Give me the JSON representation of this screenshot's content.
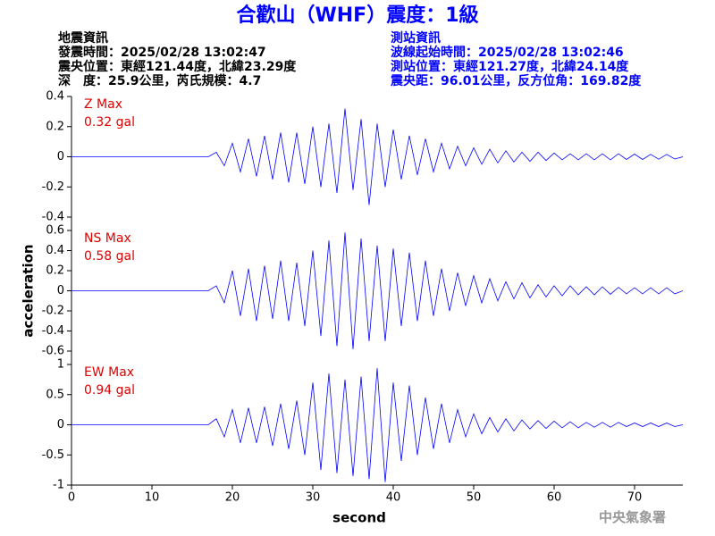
{
  "header": {
    "title": "合歡山（WHF）震度：1級",
    "left": [
      "地震資訊",
      "發震時間：2025/02/28 13:02:47",
      "震央位置：東經121.44度，北緯23.29度",
      "深　度：25.9公里，芮氏規模：4.7"
    ],
    "right": [
      "測站資訊",
      "波線起始時間：2025/02/28 13:02:46",
      "測站位置：東經121.27度，北緯24.14度",
      "震央距：96.01公里，反方位角：169.82度"
    ],
    "footer": "中央氣象署"
  },
  "chart_data": [
    {
      "type": "line",
      "annotations": [
        "Z Max",
        "0.32 gal"
      ],
      "color": "#0000ff",
      "xlim": [
        0,
        76
      ],
      "ylim": [
        -0.4,
        0.4
      ],
      "yticks": [
        0.4,
        0.2,
        0,
        -0.2,
        -0.4
      ],
      "x": [
        0,
        17,
        18,
        19,
        20,
        21,
        22,
        23,
        24,
        25,
        26,
        27,
        28,
        29,
        30,
        31,
        32,
        33,
        34,
        35,
        36,
        37,
        38,
        39,
        40,
        41,
        42,
        43,
        44,
        45,
        46,
        47,
        48,
        49,
        50,
        51,
        52,
        53,
        54,
        55,
        56,
        57,
        58,
        59,
        60,
        61,
        62,
        63,
        64,
        65,
        66,
        67,
        68,
        69,
        70,
        71,
        72,
        73,
        74,
        75,
        76
      ],
      "values": [
        0,
        0,
        0.03,
        -0.06,
        0.09,
        -0.1,
        0.12,
        -0.13,
        0.14,
        -0.15,
        0.16,
        -0.17,
        0.16,
        -0.18,
        0.2,
        -0.2,
        0.22,
        -0.24,
        0.32,
        -0.22,
        0.25,
        -0.32,
        0.22,
        -0.2,
        0.18,
        -0.15,
        0.14,
        -0.12,
        0.12,
        -0.1,
        0.09,
        -0.08,
        0.07,
        -0.06,
        0.06,
        -0.05,
        0.05,
        -0.04,
        0.04,
        -0.035,
        0.03,
        -0.03,
        0.03,
        -0.025,
        0.025,
        -0.02,
        0.02,
        -0.02,
        0.02,
        -0.02,
        0.02,
        -0.02,
        0.02,
        -0.018,
        0.018,
        -0.018,
        0.016,
        -0.016,
        0.016,
        -0.015,
        0
      ]
    },
    {
      "type": "line",
      "annotations": [
        "NS Max",
        "0.58 gal"
      ],
      "color": "#0000ff",
      "ylabel": "acceleration",
      "xlim": [
        0,
        76
      ],
      "ylim": [
        -0.6,
        0.6
      ],
      "yticks": [
        0.6,
        0.4,
        0.2,
        0,
        -0.2,
        -0.4,
        -0.6
      ],
      "x": [
        0,
        17,
        18,
        19,
        20,
        21,
        22,
        23,
        24,
        25,
        26,
        27,
        28,
        29,
        30,
        31,
        32,
        33,
        34,
        35,
        36,
        37,
        38,
        39,
        40,
        41,
        42,
        43,
        44,
        45,
        46,
        47,
        48,
        49,
        50,
        51,
        52,
        53,
        54,
        55,
        56,
        57,
        58,
        59,
        60,
        61,
        62,
        63,
        64,
        65,
        66,
        67,
        68,
        69,
        70,
        71,
        72,
        73,
        74,
        75,
        76
      ],
      "values": [
        0,
        0,
        0.05,
        -0.12,
        0.2,
        -0.25,
        0.22,
        -0.3,
        0.25,
        -0.28,
        0.3,
        -0.3,
        0.28,
        -0.35,
        0.4,
        -0.45,
        0.5,
        -0.55,
        0.58,
        -0.58,
        0.52,
        -0.5,
        0.45,
        -0.5,
        0.42,
        -0.35,
        0.38,
        -0.3,
        0.3,
        -0.25,
        0.22,
        -0.2,
        0.18,
        -0.15,
        0.15,
        -0.12,
        0.12,
        -0.1,
        0.09,
        -0.08,
        0.08,
        -0.07,
        0.06,
        -0.06,
        0.05,
        -0.05,
        0.05,
        -0.04,
        0.04,
        -0.04,
        0.04,
        -0.035,
        0.035,
        -0.03,
        0.03,
        -0.03,
        0.03,
        -0.03,
        0.03,
        -0.03,
        0
      ]
    },
    {
      "type": "line",
      "annotations": [
        "EW Max",
        "0.94 gal"
      ],
      "color": "#0000ff",
      "xlabel": "second",
      "xlim": [
        0,
        76
      ],
      "xticks": [
        0,
        10,
        20,
        30,
        40,
        50,
        60,
        70
      ],
      "ylim": [
        -1,
        1
      ],
      "yticks": [
        1,
        0.5,
        0,
        -0.5,
        -1
      ],
      "x": [
        0,
        17,
        18,
        19,
        20,
        21,
        22,
        23,
        24,
        25,
        26,
        27,
        28,
        29,
        30,
        31,
        32,
        33,
        34,
        35,
        36,
        37,
        38,
        39,
        40,
        41,
        42,
        43,
        44,
        45,
        46,
        47,
        48,
        49,
        50,
        51,
        52,
        53,
        54,
        55,
        56,
        57,
        58,
        59,
        60,
        61,
        62,
        63,
        64,
        65,
        66,
        67,
        68,
        69,
        70,
        71,
        72,
        73,
        74,
        75,
        76
      ],
      "values": [
        0,
        0,
        0.1,
        -0.2,
        0.25,
        -0.3,
        0.28,
        -0.3,
        0.3,
        -0.35,
        0.35,
        -0.4,
        0.4,
        -0.5,
        0.7,
        -0.75,
        0.85,
        -0.8,
        0.75,
        -0.85,
        0.8,
        -0.9,
        0.94,
        -0.95,
        0.7,
        -0.6,
        0.65,
        -0.5,
        0.45,
        -0.4,
        0.35,
        -0.3,
        0.25,
        -0.2,
        0.18,
        -0.15,
        0.12,
        -0.12,
        0.1,
        -0.1,
        0.08,
        -0.07,
        0.07,
        -0.06,
        0.06,
        -0.05,
        0.05,
        -0.05,
        0.04,
        -0.04,
        0.04,
        -0.04,
        0.04,
        -0.03,
        0.03,
        -0.03,
        0.03,
        -0.03,
        0.03,
        -0.03,
        0
      ]
    }
  ]
}
